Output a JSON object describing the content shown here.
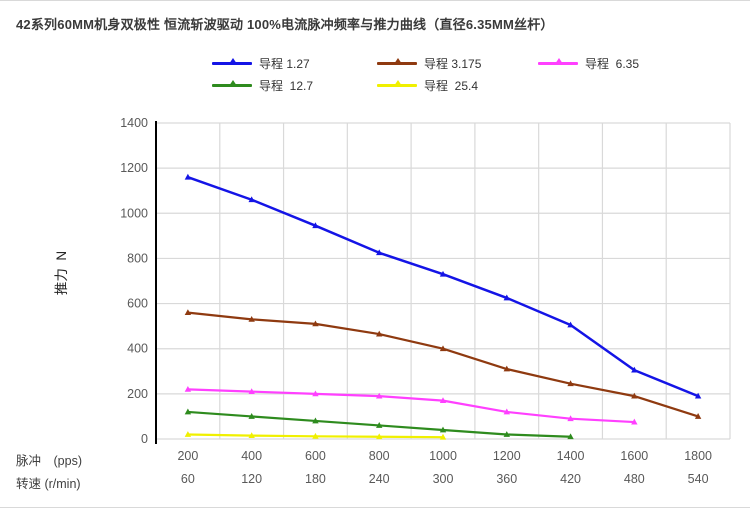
{
  "chart_data": {
    "type": "line",
    "title": "42系列60MM机身双极性 恒流斩波驱动 100%电流脉冲频率与推力曲线（直径6.35MM丝杆）",
    "ylabel": "推力  N",
    "ylim": [
      0,
      1400
    ],
    "ytick_step": 200,
    "grid": true,
    "legend_position": "top",
    "x_axis_rows": [
      {
        "label": "脉冲　(pps)",
        "ticks": [
          "200",
          "400",
          "600",
          "800",
          "1000",
          "1200",
          "1400",
          "1600",
          "1800"
        ]
      },
      {
        "label": "转速 (r/min)",
        "ticks": [
          "60",
          "120",
          "180",
          "240",
          "300",
          "360",
          "420",
          "480",
          "540"
        ]
      }
    ],
    "series": [
      {
        "name": "导程 1.27",
        "color": "#1414e6",
        "values": [
          1160,
          1060,
          945,
          825,
          730,
          625,
          505,
          305,
          190
        ]
      },
      {
        "name": "导程 3.175",
        "color": "#8f3a10",
        "values": [
          560,
          530,
          510,
          465,
          400,
          310,
          245,
          190,
          100
        ]
      },
      {
        "name": "导程  6.35",
        "color": "#ff40ff",
        "values": [
          220,
          210,
          200,
          190,
          170,
          120,
          90,
          75
        ]
      },
      {
        "name": "导程  12.7",
        "color": "#2e8b1e",
        "values": [
          120,
          100,
          80,
          60,
          40,
          20,
          10
        ]
      },
      {
        "name": "导程  25.4",
        "color": "#f0f000",
        "values": [
          20,
          15,
          12,
          10,
          8
        ]
      }
    ],
    "colors": {
      "gridline": "#d9d9d9",
      "axis": "#000000",
      "tick_label": "#595959"
    }
  }
}
